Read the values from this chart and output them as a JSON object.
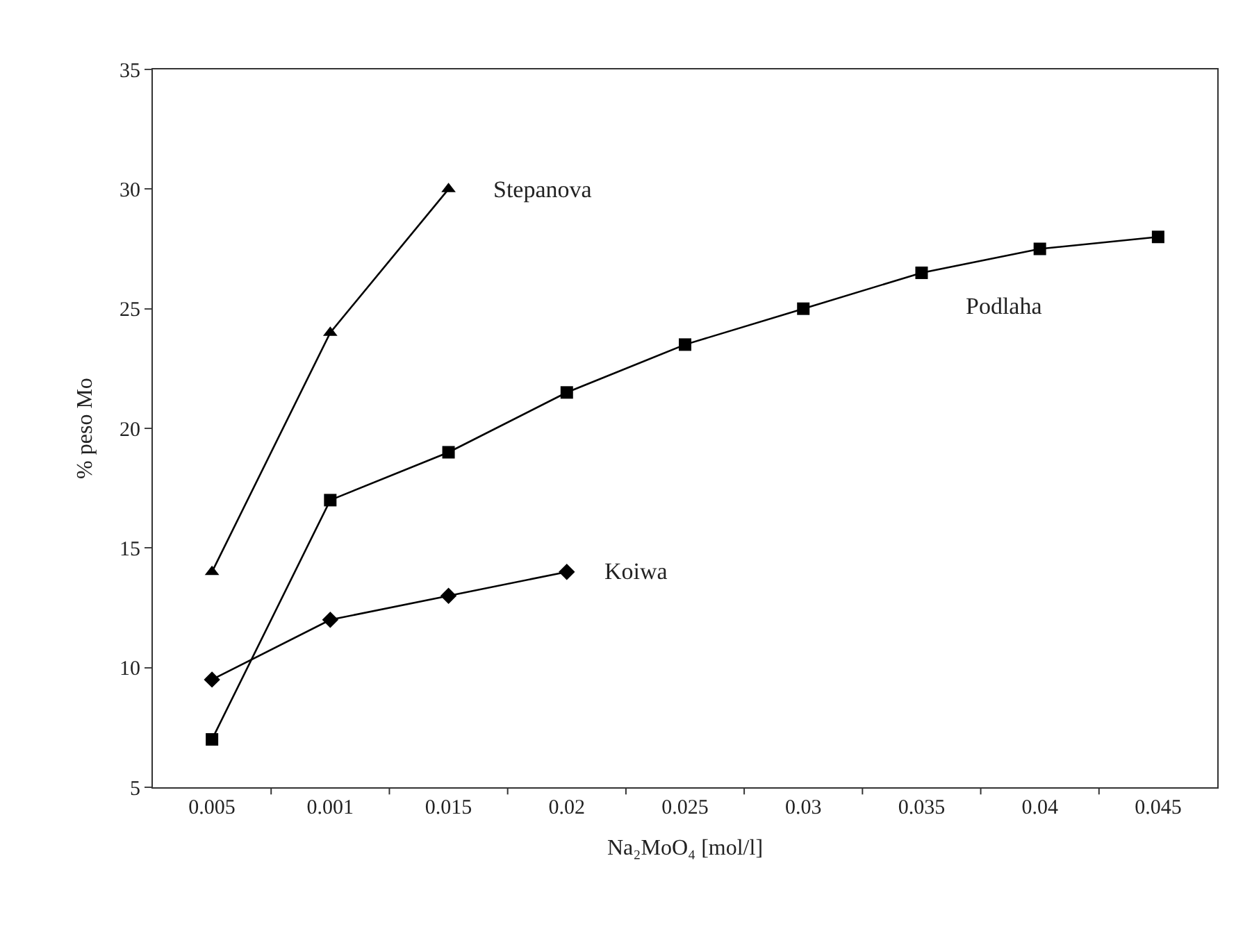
{
  "chart_data": {
    "type": "line",
    "xlabel": "Na₂MoO₄ [mol/l]",
    "ylabel": "% peso Mo",
    "categories": [
      "0.005",
      "0.001",
      "0.015",
      "0.02",
      "0.025",
      "0.03",
      "0.035",
      "0.04",
      "0.045"
    ],
    "series": [
      {
        "name": "Stepanova",
        "color": "#000000",
        "marker": "triangle",
        "values": [
          14,
          24,
          30,
          null,
          null,
          null,
          null,
          null,
          null
        ]
      },
      {
        "name": "Podlaha",
        "color": "#000000",
        "marker": "square",
        "values": [
          7,
          17,
          19,
          21.5,
          23.5,
          25,
          26.5,
          27.5,
          28
        ]
      },
      {
        "name": "Koiwa",
        "color": "#000000",
        "marker": "diamond",
        "values": [
          9.5,
          12,
          13,
          14,
          null,
          null,
          null,
          null,
          null
        ]
      }
    ],
    "ylim": [
      5,
      35
    ],
    "yticks": [
      5,
      10,
      15,
      20,
      25,
      30,
      35
    ],
    "legend": false,
    "line_style": "solid"
  }
}
